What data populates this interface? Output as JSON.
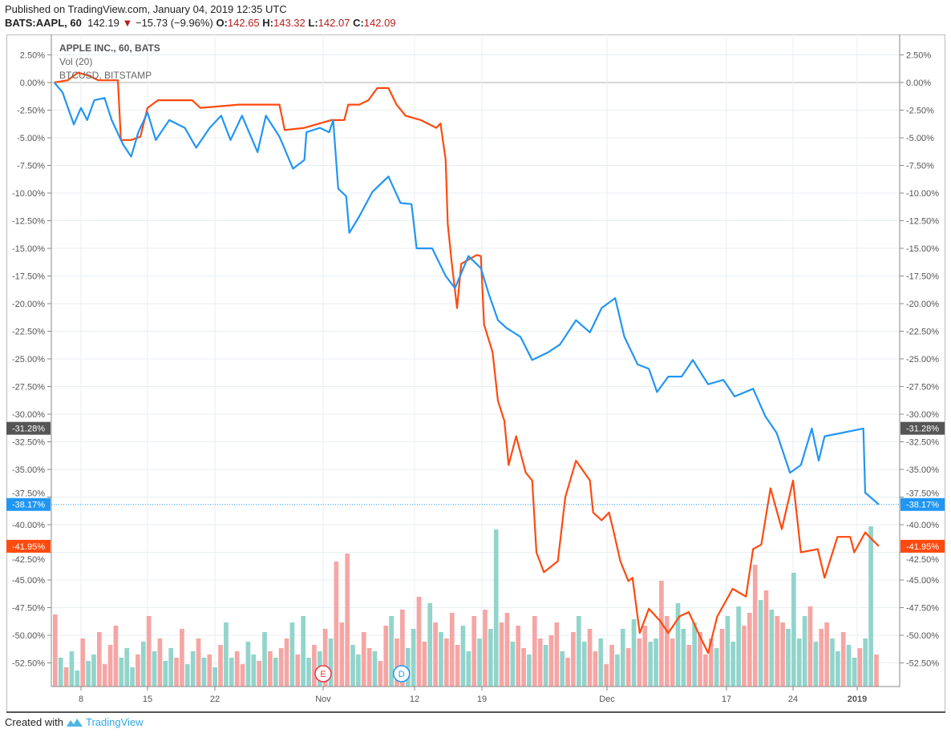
{
  "header": {
    "published": "Published on TradingView.com, January 04, 2019 12:35 UTC",
    "symbol": "BATS:AAPL, 60",
    "last": "142.19",
    "change": "−15.73 (−9.96%)",
    "o_label": "O:",
    "o": "142.65",
    "h_label": "H:",
    "h": "143.32",
    "l_label": "L:",
    "l": "142.07",
    "c_label": "C:",
    "c": "142.09",
    "down_icon": "triangle-down-icon"
  },
  "legend": {
    "main": "APPLE INC., 60, BATS",
    "vol": "Vol (20)",
    "compare": "BTCUSD, BITSTAMP"
  },
  "footer": {
    "created_with": "Created with",
    "brand": "TradingView",
    "logo_icon": "tradingview-logo-icon"
  },
  "colors": {
    "aapl": "#2196f3",
    "btc": "#ff4a0f",
    "vol_up": "#92d4cb",
    "vol_down": "#f5a6a4",
    "last_badge": "#555555",
    "grid": "#e8eef3"
  },
  "chart_data": {
    "type": "line",
    "y_axis": {
      "unit": "%",
      "range": [
        -55,
        3.5
      ],
      "ticks": [
        "2.50%",
        "0.00%",
        "-2.50%",
        "-5.00%",
        "-7.50%",
        "-10.00%",
        "-12.50%",
        "-15.00%",
        "-17.50%",
        "-20.00%",
        "-22.50%",
        "-25.00%",
        "-27.50%",
        "-30.00%",
        "-32.50%",
        "-35.00%",
        "-37.50%",
        "-40.00%",
        "-42.50%",
        "-45.00%",
        "-47.50%",
        "-50.00%",
        "-52.50%"
      ],
      "tick_values": [
        2.5,
        0,
        -2.5,
        -5,
        -7.5,
        -10,
        -12.5,
        -15,
        -17.5,
        -20,
        -22.5,
        -25,
        -27.5,
        -30,
        -32.5,
        -35,
        -37.5,
        -40,
        -42.5,
        -45,
        -47.5,
        -50,
        -52.5
      ],
      "sides": "both"
    },
    "x_axis": {
      "ticks": [
        {
          "label": "8",
          "date": "2018-10-08"
        },
        {
          "label": "15",
          "date": "2018-10-15"
        },
        {
          "label": "22",
          "date": "2018-10-22"
        },
        {
          "label": "Nov",
          "date": "2018-11-01"
        },
        {
          "label": "12",
          "date": "2018-11-12"
        },
        {
          "label": "19",
          "date": "2018-11-19"
        },
        {
          "label": "Dec",
          "date": "2018-12-03"
        },
        {
          "label": "17",
          "date": "2018-12-17"
        },
        {
          "label": "24",
          "date": "2018-12-24"
        },
        {
          "label": "2019",
          "date": "2019-01-02",
          "bold": true
        }
      ]
    },
    "grid": true,
    "series": [
      {
        "key": "aapl",
        "color": "#2196f3",
        "last_label": "-38.17%",
        "last_value": -38.17,
        "points": [
          [
            "2018-10-04 10",
            0
          ],
          [
            "2018-10-04 14",
            -0.9
          ],
          [
            "2018-10-05 13",
            -3.8
          ],
          [
            "2018-10-08 10",
            -2.3
          ],
          [
            "2018-10-08 13",
            -3.4
          ],
          [
            "2018-10-09 10",
            -1.6
          ],
          [
            "2018-10-09 15",
            -1.4
          ],
          [
            "2018-10-10 12",
            -3.4
          ],
          [
            "2018-10-11 11",
            -5.6
          ],
          [
            "2018-10-11 15",
            -6.7
          ],
          [
            "2018-10-12 12",
            -4.5
          ],
          [
            "2018-10-15 10",
            -2.7
          ],
          [
            "2018-10-15 14",
            -5.2
          ],
          [
            "2018-10-16 14",
            -3.4
          ],
          [
            "2018-10-17 15",
            -4.1
          ],
          [
            "2018-10-18 14",
            -5.9
          ],
          [
            "2018-10-19 14",
            -4.1
          ],
          [
            "2018-10-22 13",
            -3.0
          ],
          [
            "2018-10-23 11",
            -5.2
          ],
          [
            "2018-10-24 10",
            -3.0
          ],
          [
            "2018-10-25 11",
            -6.3
          ],
          [
            "2018-10-25 15",
            -3.0
          ],
          [
            "2018-10-26 15",
            -4.9
          ],
          [
            "2018-10-29 15",
            -7.8
          ],
          [
            "2018-10-30 14",
            -7.0
          ],
          [
            "2018-10-30 15",
            -4.5
          ],
          [
            "2018-10-31 15",
            -4.1
          ],
          [
            "2018-11-01 13",
            -4.5
          ],
          [
            "2018-11-01 15",
            -3.4
          ],
          [
            "2018-11-02 11",
            -9.6
          ],
          [
            "2018-11-02 15",
            -10.3
          ],
          [
            "2018-11-05 10",
            -13.6
          ],
          [
            "2018-11-05 15",
            -12.1
          ],
          [
            "2018-11-06 15",
            -9.9
          ],
          [
            "2018-11-08 10",
            -8.5
          ],
          [
            "2018-11-08 16",
            -10.9
          ],
          [
            "2018-11-09 15",
            -11.0
          ],
          [
            "2018-11-12 11",
            -15.0
          ],
          [
            "2018-11-13 12",
            -15.0
          ],
          [
            "2018-11-14 12",
            -17.5
          ],
          [
            "2018-11-15 10",
            -18.6
          ],
          [
            "2018-11-16 10",
            -15.7
          ],
          [
            "2018-11-16 16",
            -16.8
          ],
          [
            "2018-11-19 13",
            -19.0
          ],
          [
            "2018-11-20 11",
            -21.5
          ],
          [
            "2018-11-20 15",
            -22.2
          ],
          [
            "2018-11-21 15",
            -23.0
          ],
          [
            "2018-11-23 14",
            -25.1
          ],
          [
            "2018-11-26 15",
            -24.4
          ],
          [
            "2018-11-27 14",
            -23.7
          ],
          [
            "2018-11-28 15",
            -21.5
          ],
          [
            "2018-11-29 15",
            -22.6
          ],
          [
            "2018-11-30 14",
            -20.4
          ],
          [
            "2018-12-03 14",
            -19.5
          ],
          [
            "2018-12-04 12",
            -23.0
          ],
          [
            "2018-12-06 12",
            -25.5
          ],
          [
            "2018-12-07 11",
            -25.9
          ],
          [
            "2018-12-07 15",
            -28.0
          ],
          [
            "2018-12-10 14",
            -26.6
          ],
          [
            "2018-12-11 14",
            -26.6
          ],
          [
            "2018-12-12 13",
            -25.1
          ],
          [
            "2018-12-13 14",
            -27.3
          ],
          [
            "2018-12-14 15",
            -26.9
          ],
          [
            "2018-12-17 14",
            -28.4
          ],
          [
            "2018-12-19 10",
            -27.7
          ],
          [
            "2018-12-19 16",
            -30.2
          ],
          [
            "2018-12-20 15",
            -31.7
          ],
          [
            "2018-12-21 15",
            -35.3
          ],
          [
            "2018-12-24 14",
            -34.6
          ],
          [
            "2018-12-26 13",
            -31.3
          ],
          [
            "2018-12-27 10",
            -34.2
          ],
          [
            "2018-12-27 13",
            -32.0
          ],
          [
            "2018-12-28 15",
            -31.7
          ],
          [
            "2019-01-02 15",
            -31.3
          ],
          [
            "2019-01-03 10",
            -37.1
          ],
          [
            "2019-01-04 12",
            -38.17
          ]
        ]
      },
      {
        "key": "btc",
        "color": "#ff4a0f",
        "last_label": "-41.95%",
        "last_value": -41.95,
        "points": [
          [
            "2018-10-04 10",
            0
          ],
          [
            "2018-10-05 10",
            0.2
          ],
          [
            "2018-10-05 15",
            0.9
          ],
          [
            "2018-10-08 14",
            0.6
          ],
          [
            "2018-10-09 12",
            0.2
          ],
          [
            "2018-10-10 10",
            0.2
          ],
          [
            "2018-10-10 15",
            0.2
          ],
          [
            "2018-10-11 10",
            -5.2
          ],
          [
            "2018-10-11 15",
            -5.2
          ],
          [
            "2018-10-12 13",
            -4.9
          ],
          [
            "2018-10-15 10",
            -2.3
          ],
          [
            "2018-10-15 15",
            -1.6
          ],
          [
            "2018-10-18 12",
            -1.6
          ],
          [
            "2018-10-18 16",
            -2.3
          ],
          [
            "2018-10-23 15",
            -2.0
          ],
          [
            "2018-10-26 15",
            -2.0
          ],
          [
            "2018-10-29 11",
            -4.3
          ],
          [
            "2018-10-30 14",
            -4.1
          ],
          [
            "2018-11-01 14",
            -3.4
          ],
          [
            "2018-11-02 14",
            -3.4
          ],
          [
            "2018-11-02 16",
            -2.0
          ],
          [
            "2018-11-05 15",
            -2.0
          ],
          [
            "2018-11-06 13",
            -1.6
          ],
          [
            "2018-11-07 11",
            -0.5
          ],
          [
            "2018-11-08 10",
            -0.5
          ],
          [
            "2018-11-08 14",
            -2.0
          ],
          [
            "2018-11-09 12",
            -3.0
          ],
          [
            "2018-11-12 13",
            -3.4
          ],
          [
            "2018-11-13 14",
            -4.1
          ],
          [
            "2018-11-13 16",
            -3.7
          ],
          [
            "2018-11-14 12",
            -7.0
          ],
          [
            "2018-11-14 13",
            -12.8
          ],
          [
            "2018-11-14 15",
            -16.4
          ],
          [
            "2018-11-15 11",
            -20.4
          ],
          [
            "2018-11-15 13",
            -16.4
          ],
          [
            "2018-11-16 14",
            -15.6
          ],
          [
            "2018-11-16 16",
            -15.7
          ],
          [
            "2018-11-19 11",
            -21.9
          ],
          [
            "2018-11-19 15",
            -24.4
          ],
          [
            "2018-11-20 11",
            -28.8
          ],
          [
            "2018-11-20 14",
            -30.6
          ],
          [
            "2018-11-20 16",
            -34.6
          ],
          [
            "2018-11-21 13",
            -32.0
          ],
          [
            "2018-11-23 11",
            -35.3
          ],
          [
            "2018-11-23 14",
            -36.0
          ],
          [
            "2018-11-23 16",
            -42.5
          ],
          [
            "2018-11-26 13",
            -44.3
          ],
          [
            "2018-11-27 13",
            -43.3
          ],
          [
            "2018-11-28 10",
            -37.5
          ],
          [
            "2018-11-28 15",
            -34.2
          ],
          [
            "2018-11-29 15",
            -36.0
          ],
          [
            "2018-11-30 10",
            -38.9
          ],
          [
            "2018-11-30 14",
            -39.6
          ],
          [
            "2018-12-03 11",
            -38.9
          ],
          [
            "2018-12-03 13",
            -40.4
          ],
          [
            "2018-12-04 10",
            -43.3
          ],
          [
            "2018-12-04 14",
            -45.1
          ],
          [
            "2018-12-04 16",
            -44.8
          ],
          [
            "2018-12-06 13",
            -49.8
          ],
          [
            "2018-12-07 11",
            -47.6
          ],
          [
            "2018-12-10 10",
            -48.7
          ],
          [
            "2018-12-10 14",
            -49.8
          ],
          [
            "2018-12-11 13",
            -48.3
          ],
          [
            "2018-12-12 11",
            -47.9
          ],
          [
            "2018-12-13 10",
            -50.1
          ],
          [
            "2018-12-13 14",
            -51.6
          ],
          [
            "2018-12-14 12",
            -48.3
          ],
          [
            "2018-12-17 13",
            -45.8
          ],
          [
            "2018-12-18 13",
            -46.5
          ],
          [
            "2018-12-19 10",
            -42.2
          ],
          [
            "2018-12-19 14",
            -41.8
          ],
          [
            "2018-12-20 12",
            -36.7
          ],
          [
            "2018-12-21 11",
            -40.4
          ],
          [
            "2018-12-24 10",
            -36.0
          ],
          [
            "2018-12-24 14",
            -42.5
          ],
          [
            "2018-12-26 16",
            -42.2
          ],
          [
            "2018-12-27 13",
            -44.8
          ],
          [
            "2018-12-28 13",
            -41.1
          ],
          [
            "2018-12-31 13",
            -41.1
          ],
          [
            "2018-12-31 15",
            -42.5
          ],
          [
            "2019-01-03 10",
            -40.7
          ],
          [
            "2019-01-04 12",
            -41.95
          ]
        ]
      }
    ],
    "reference_badge": {
      "label": "-31.28%",
      "value": -31.28
    },
    "volume": {
      "name": "Vol (20)",
      "values": [
        45,
        18,
        12,
        22,
        10,
        30,
        16,
        20,
        34,
        14,
        26,
        38,
        18,
        24,
        12,
        20,
        28,
        44,
        22,
        30,
        16,
        24,
        18,
        36,
        14,
        22,
        30,
        18,
        20,
        12,
        26,
        40,
        18,
        22,
        14,
        28,
        20,
        16,
        34,
        22,
        18,
        24,
        30,
        40,
        20,
        44,
        18,
        26,
        22,
        36,
        30,
        78,
        40,
        83,
        26,
        20,
        34,
        24,
        22,
        16,
        38,
        44,
        30,
        48,
        24,
        36,
        56,
        28,
        52,
        40,
        34,
        30,
        46,
        26,
        38,
        22,
        44,
        30,
        48,
        36,
        98,
        40,
        46,
        28,
        38,
        24,
        20,
        44,
        30,
        26,
        32,
        40,
        22,
        18,
        34,
        44,
        28,
        36,
        22,
        30,
        14,
        26,
        20,
        36,
        24,
        42,
        30,
        38,
        28,
        30,
        66,
        44,
        30,
        52,
        36,
        26,
        40,
        34,
        20,
        30,
        24,
        36,
        44,
        28,
        50,
        38,
        46,
        76,
        54,
        60,
        48,
        44,
        40,
        36,
        71,
        30,
        44,
        50,
        28,
        36,
        40,
        30,
        22,
        34,
        26,
        18,
        24,
        30,
        100,
        20
      ],
      "direction": "duduuduudddduuudududuudduudududuudduudududduduudududdduudduddudduuddududdduududuudduddudduddudduuddudduududduuddduududdduduuudddududduuuududduuduuduudduud"
    },
    "events": [
      {
        "label": "E",
        "date": "2018-11-01",
        "color": "#f23645"
      },
      {
        "label": "D",
        "date": "2018-11-09",
        "color": "#2196f3"
      }
    ]
  }
}
